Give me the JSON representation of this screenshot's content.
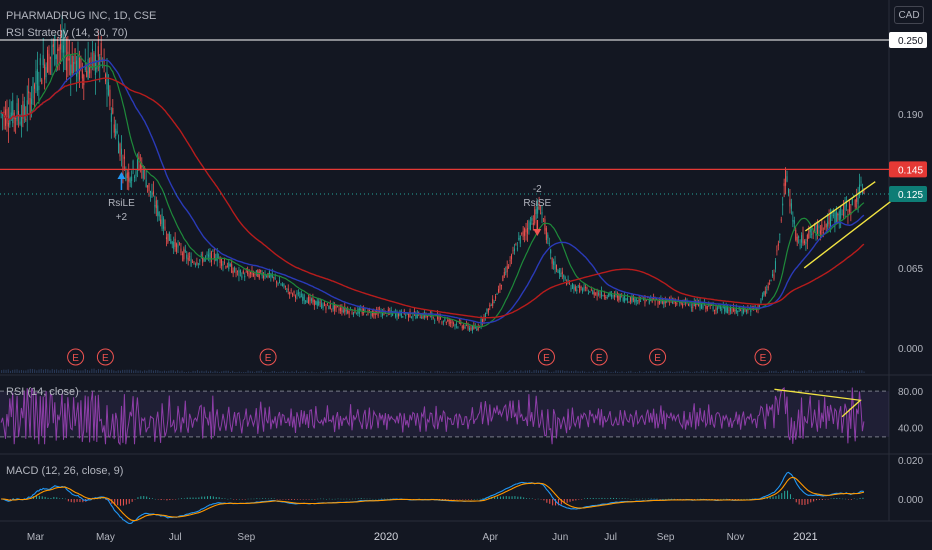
{
  "header": {
    "title": "PHARMADRUG INC, 1D, CSE",
    "strategy": "RSI Strategy (14, 30, 70)",
    "currency": "CAD"
  },
  "colors": {
    "background": "#131722",
    "up": "#26a69a",
    "down": "#ef5350",
    "ma_fast": "#1e8a3a",
    "ma_mid": "#2a3ab8",
    "ma_slow": "#b71c1c",
    "resistance": "#e53935",
    "trend": "#f2e442",
    "rsi": "#8e3ea8",
    "macd": "#2196f3",
    "signal": "#ff9800"
  },
  "chart_data": [
    {
      "type": "candlestick",
      "name": "price",
      "x_ticks": [
        "Mar",
        "May",
        "Jul",
        "Sep",
        "2020",
        "Apr",
        "Jun",
        "Jul",
        "Sep",
        "Nov",
        "2021"
      ],
      "y_ticks": [
        "0.250",
        "0.190",
        "0.145",
        "0.125",
        "0.065",
        "0.000"
      ],
      "ylim": [
        0,
        0.27
      ],
      "trend_points": [
        [
          "2019-02-20",
          0.19
        ],
        [
          "2019-03-05",
          0.225
        ],
        [
          "2019-03-20",
          0.245
        ],
        [
          "2019-04-10",
          0.225
        ],
        [
          "2019-04-28",
          0.235
        ],
        [
          "2019-05-08",
          0.185
        ],
        [
          "2019-05-20",
          0.14
        ],
        [
          "2019-06-01",
          0.15
        ],
        [
          "2019-06-10",
          0.125
        ],
        [
          "2019-06-25",
          0.09
        ],
        [
          "2019-07-15",
          0.07
        ],
        [
          "2019-08-05",
          0.075
        ],
        [
          "2019-08-25",
          0.06
        ],
        [
          "2019-09-20",
          0.06
        ],
        [
          "2019-10-10",
          0.045
        ],
        [
          "2019-11-05",
          0.035
        ],
        [
          "2019-12-01",
          0.03
        ],
        [
          "2020-01-10",
          0.028
        ],
        [
          "2020-02-10",
          0.026
        ],
        [
          "2020-03-01",
          0.02
        ],
        [
          "2020-03-20",
          0.015
        ],
        [
          "2020-04-05",
          0.04
        ],
        [
          "2020-04-25",
          0.085
        ],
        [
          "2020-05-05",
          0.1
        ],
        [
          "2020-05-15",
          0.115
        ],
        [
          "2020-05-25",
          0.07
        ],
        [
          "2020-06-10",
          0.05
        ],
        [
          "2020-07-01",
          0.045
        ],
        [
          "2020-08-01",
          0.04
        ],
        [
          "2020-09-01",
          0.038
        ],
        [
          "2020-10-01",
          0.035
        ],
        [
          "2020-11-01",
          0.03
        ],
        [
          "2020-11-20",
          0.032
        ],
        [
          "2020-12-05",
          0.06
        ],
        [
          "2020-12-15",
          0.14
        ],
        [
          "2020-12-25",
          0.085
        ],
        [
          "2021-01-10",
          0.095
        ],
        [
          "2021-01-25",
          0.105
        ],
        [
          "2021-02-10",
          0.115
        ],
        [
          "2021-02-20",
          0.13
        ]
      ],
      "resistance": 0.145,
      "last_price": 0.125,
      "markers": [
        {
          "date": "2019-05-15",
          "text1": "RsiLE",
          "text2": "+2",
          "dir": "up"
        },
        {
          "date": "2020-05-12",
          "text1": "-2",
          "text2": "RsiSE",
          "dir": "down"
        }
      ],
      "earnings": [
        "2019-04-05",
        "2019-05-01",
        "2019-09-20",
        "2020-05-20",
        "2020-07-05",
        "2020-08-25",
        "2020-11-25"
      ],
      "earnings_label": "E"
    },
    {
      "type": "line",
      "name": "rsi",
      "label": "RSI (14, close)",
      "y_ticks": [
        "80.00",
        "40.00"
      ],
      "upper": 80,
      "lower": 30,
      "ylim": [
        20,
        90
      ]
    },
    {
      "type": "bar",
      "name": "macd",
      "label": "MACD (12, 26, close, 9)",
      "y_ticks": [
        "0.020",
        "0.000"
      ],
      "ylim": [
        -0.012,
        0.02
      ]
    }
  ]
}
